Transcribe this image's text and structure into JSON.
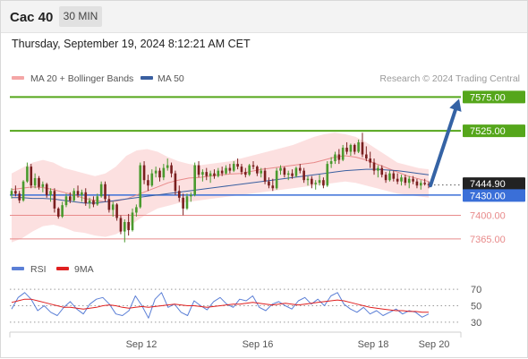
{
  "header": {
    "title": "Cac 40",
    "timeframe": "30 MIN"
  },
  "datetime": "Thursday, September 19, 2024 8:12:21 AM CET",
  "legend": {
    "items": [
      {
        "label": "MA 20 + Bollinger Bands",
        "color": "#f4a6a6"
      },
      {
        "label": "MA 50",
        "color": "#3a5fa0"
      }
    ],
    "copyright": "Research © 2024 Trading Central"
  },
  "rsi_legend": {
    "items": [
      {
        "label": "RSI",
        "color": "#5b7fd6"
      },
      {
        "label": "9MA",
        "color": "#e02020"
      }
    ]
  },
  "colors": {
    "up": "#4a9a2e",
    "down": "#7a1f1f",
    "resistance": "#55a61b",
    "support": "#3a6fd8",
    "support_minor": "#e88a8a",
    "last_price": "#222222",
    "arrow": "#3563a5",
    "band": "#fbdada"
  },
  "chart_data": [
    {
      "type": "candlestick",
      "y_range": [
        7345,
        7590
      ],
      "x_ticks": [
        "Sep 12",
        "Sep 16",
        "Sep 18",
        "Sep 20"
      ],
      "last_price": 7444.9,
      "levels": [
        {
          "label": "7575.00",
          "value": 7575,
          "kind": "resistance"
        },
        {
          "label": "7525.00",
          "value": 7525,
          "kind": "resistance"
        },
        {
          "label": "7444.90",
          "value": 7444.9,
          "kind": "last"
        },
        {
          "label": "7430.00",
          "value": 7430,
          "kind": "pivot"
        },
        {
          "label": "7400.00",
          "value": 7400,
          "kind": "support"
        },
        {
          "label": "7365.00",
          "value": 7365,
          "kind": "support"
        }
      ],
      "projection": {
        "from": 7444,
        "to": 7575,
        "direction": "up"
      },
      "candles": [
        [
          7430,
          7440,
          7425,
          7436
        ],
        [
          7436,
          7444,
          7428,
          7432
        ],
        [
          7432,
          7436,
          7418,
          7422
        ],
        [
          7422,
          7452,
          7420,
          7450
        ],
        [
          7450,
          7478,
          7448,
          7472
        ],
        [
          7472,
          7476,
          7440,
          7444
        ],
        [
          7444,
          7462,
          7440,
          7455
        ],
        [
          7455,
          7458,
          7438,
          7442
        ],
        [
          7442,
          7450,
          7434,
          7446
        ],
        [
          7446,
          7448,
          7426,
          7430
        ],
        [
          7430,
          7440,
          7420,
          7436
        ],
        [
          7436,
          7440,
          7404,
          7410
        ],
        [
          7410,
          7412,
          7395,
          7398
        ],
        [
          7398,
          7420,
          7396,
          7415
        ],
        [
          7415,
          7432,
          7412,
          7428
        ],
        [
          7428,
          7434,
          7418,
          7422
        ],
        [
          7422,
          7440,
          7420,
          7436
        ],
        [
          7436,
          7444,
          7426,
          7430
        ],
        [
          7430,
          7438,
          7420,
          7434
        ],
        [
          7434,
          7440,
          7414,
          7418
        ],
        [
          7418,
          7426,
          7410,
          7422
        ],
        [
          7422,
          7428,
          7412,
          7416
        ],
        [
          7416,
          7432,
          7414,
          7428
        ],
        [
          7428,
          7450,
          7426,
          7446
        ],
        [
          7446,
          7450,
          7420,
          7424
        ],
        [
          7424,
          7430,
          7404,
          7408
        ],
        [
          7408,
          7420,
          7398,
          7416
        ],
        [
          7416,
          7418,
          7392,
          7396
        ],
        [
          7396,
          7400,
          7372,
          7376
        ],
        [
          7376,
          7394,
          7360,
          7390
        ],
        [
          7390,
          7402,
          7370,
          7378
        ],
        [
          7378,
          7410,
          7376,
          7404
        ],
        [
          7404,
          7416,
          7398,
          7412
        ],
        [
          7412,
          7478,
          7410,
          7474
        ],
        [
          7474,
          7480,
          7446,
          7452
        ],
        [
          7452,
          7460,
          7436,
          7444
        ],
        [
          7444,
          7468,
          7442,
          7462
        ],
        [
          7462,
          7472,
          7456,
          7466
        ],
        [
          7466,
          7470,
          7450,
          7456
        ],
        [
          7456,
          7476,
          7452,
          7470
        ],
        [
          7470,
          7484,
          7466,
          7474
        ],
        [
          7474,
          7478,
          7456,
          7462
        ],
        [
          7462,
          7466,
          7430,
          7436
        ],
        [
          7436,
          7444,
          7420,
          7426
        ],
        [
          7426,
          7432,
          7400,
          7410
        ],
        [
          7410,
          7432,
          7408,
          7428
        ],
        [
          7428,
          7434,
          7420,
          7430
        ],
        [
          7430,
          7478,
          7428,
          7474
        ],
        [
          7474,
          7480,
          7456,
          7460
        ],
        [
          7460,
          7468,
          7450,
          7464
        ],
        [
          7464,
          7470,
          7452,
          7458
        ],
        [
          7458,
          7466,
          7448,
          7462
        ],
        [
          7462,
          7468,
          7454,
          7458
        ],
        [
          7458,
          7470,
          7456,
          7466
        ],
        [
          7466,
          7472,
          7458,
          7462
        ],
        [
          7462,
          7474,
          7460,
          7470
        ],
        [
          7470,
          7476,
          7462,
          7466
        ],
        [
          7466,
          7480,
          7464,
          7476
        ],
        [
          7476,
          7484,
          7468,
          7472
        ],
        [
          7472,
          7476,
          7460,
          7464
        ],
        [
          7464,
          7470,
          7456,
          7460
        ],
        [
          7460,
          7476,
          7458,
          7474
        ],
        [
          7474,
          7480,
          7468,
          7472
        ],
        [
          7472,
          7474,
          7458,
          7462
        ],
        [
          7462,
          7470,
          7456,
          7466
        ],
        [
          7466,
          7470,
          7446,
          7450
        ],
        [
          7450,
          7456,
          7440,
          7444
        ],
        [
          7444,
          7454,
          7436,
          7440
        ],
        [
          7440,
          7470,
          7438,
          7466
        ],
        [
          7466,
          7474,
          7460,
          7470
        ],
        [
          7470,
          7472,
          7456,
          7460
        ],
        [
          7460,
          7466,
          7452,
          7462
        ],
        [
          7462,
          7468,
          7454,
          7458
        ],
        [
          7458,
          7472,
          7456,
          7470
        ],
        [
          7470,
          7476,
          7462,
          7466
        ],
        [
          7466,
          7470,
          7448,
          7452
        ],
        [
          7452,
          7458,
          7444,
          7454
        ],
        [
          7454,
          7458,
          7440,
          7446
        ],
        [
          7446,
          7452,
          7438,
          7448
        ],
        [
          7448,
          7460,
          7444,
          7452
        ],
        [
          7452,
          7456,
          7440,
          7444
        ],
        [
          7444,
          7480,
          7442,
          7476
        ],
        [
          7476,
          7486,
          7470,
          7480
        ],
        [
          7480,
          7494,
          7476,
          7490
        ],
        [
          7490,
          7498,
          7476,
          7482
        ],
        [
          7482,
          7504,
          7480,
          7500
        ],
        [
          7500,
          7508,
          7490,
          7494
        ],
        [
          7494,
          7506,
          7488,
          7504
        ],
        [
          7504,
          7506,
          7490,
          7494
        ],
        [
          7494,
          7512,
          7492,
          7508
        ],
        [
          7508,
          7522,
          7486,
          7490
        ],
        [
          7490,
          7502,
          7480,
          7484
        ],
        [
          7484,
          7494,
          7470,
          7478
        ],
        [
          7478,
          7484,
          7460,
          7466
        ],
        [
          7466,
          7474,
          7456,
          7470
        ],
        [
          7470,
          7474,
          7456,
          7460
        ],
        [
          7460,
          7464,
          7448,
          7452
        ],
        [
          7452,
          7466,
          7450,
          7462
        ],
        [
          7462,
          7466,
          7450,
          7454
        ],
        [
          7454,
          7462,
          7446,
          7450
        ],
        [
          7450,
          7460,
          7444,
          7456
        ],
        [
          7456,
          7460,
          7444,
          7448
        ],
        [
          7448,
          7458,
          7440,
          7454
        ],
        [
          7454,
          7458,
          7446,
          7450
        ],
        [
          7450,
          7454,
          7440,
          7444
        ],
        [
          7444,
          7452,
          7438,
          7448
        ],
        [
          7448,
          7454,
          7444,
          7446
        ],
        [
          7446,
          7450,
          7440,
          7444.9
        ]
      ],
      "ma20": [
        7438,
        7440,
        7442,
        7441,
        7438,
        7434,
        7430,
        7425,
        7422,
        7420,
        7421,
        7424,
        7430,
        7436,
        7442,
        7448,
        7452,
        7455,
        7456,
        7458,
        7460,
        7461,
        7462,
        7465,
        7468,
        7470,
        7472,
        7474,
        7476,
        7478,
        7482,
        7486,
        7488,
        7486,
        7482,
        7476,
        7470,
        7464,
        7458,
        7454,
        7450
      ],
      "ma50": [
        7426,
        7426,
        7425,
        7425,
        7424,
        7422,
        7420,
        7418,
        7418,
        7420,
        7422,
        7424,
        7426,
        7428,
        7430,
        7432,
        7434,
        7436,
        7438,
        7440,
        7442,
        7444,
        7446,
        7448,
        7450,
        7452,
        7454,
        7456,
        7458,
        7460,
        7462,
        7464,
        7466,
        7467,
        7468,
        7468,
        7467,
        7466,
        7464,
        7462,
        7460
      ],
      "bb_upper": [
        7462,
        7470,
        7478,
        7482,
        7478,
        7470,
        7466,
        7462,
        7458,
        7462,
        7472,
        7488,
        7496,
        7498,
        7494,
        7486,
        7480,
        7476,
        7474,
        7476,
        7478,
        7480,
        7484,
        7488,
        7492,
        7496,
        7500,
        7504,
        7510,
        7516,
        7520,
        7522,
        7520,
        7516,
        7508,
        7498,
        7488,
        7478,
        7474,
        7470,
        7468
      ],
      "bb_lower": [
        7360,
        7366,
        7376,
        7384,
        7386,
        7382,
        7376,
        7374,
        7370,
        7368,
        7372,
        7380,
        7392,
        7402,
        7410,
        7414,
        7418,
        7420,
        7422,
        7424,
        7426,
        7428,
        7430,
        7432,
        7434,
        7436,
        7438,
        7440,
        7442,
        7444,
        7446,
        7448,
        7450,
        7448,
        7444,
        7440,
        7436,
        7432,
        7430,
        7428,
        7426
      ]
    },
    {
      "type": "line",
      "title": "RSI",
      "y_ticks": [
        70,
        50,
        30
      ],
      "y_range": [
        20,
        80
      ],
      "series": [
        {
          "name": "RSI",
          "values": [
            46,
            60,
            66,
            58,
            44,
            50,
            42,
            38,
            48,
            55,
            46,
            40,
            52,
            58,
            60,
            52,
            40,
            38,
            44,
            62,
            50,
            35,
            58,
            66,
            48,
            52,
            42,
            38,
            56,
            50,
            45,
            55,
            60,
            52,
            48,
            58,
            56,
            62,
            48,
            44,
            52,
            55,
            50,
            46,
            56,
            60,
            52,
            58,
            50,
            62,
            66,
            52,
            46,
            42,
            48,
            40,
            44,
            38,
            42,
            46,
            40,
            44,
            42,
            36,
            40
          ]
        },
        {
          "name": "9MA",
          "values": [
            54,
            56,
            58,
            58,
            56,
            54,
            52,
            50,
            48,
            48,
            47,
            46,
            47,
            48,
            50,
            51,
            50,
            48,
            47,
            48,
            49,
            48,
            49,
            50,
            51,
            52,
            51,
            50,
            50,
            49,
            48,
            49,
            50,
            51,
            52,
            52,
            53,
            54,
            53,
            52,
            51,
            52,
            53,
            52,
            51,
            52,
            53,
            54,
            55,
            56,
            57,
            56,
            54,
            52,
            50,
            48,
            47,
            46,
            45,
            44,
            44,
            43,
            43,
            42,
            42
          ]
        }
      ]
    }
  ]
}
